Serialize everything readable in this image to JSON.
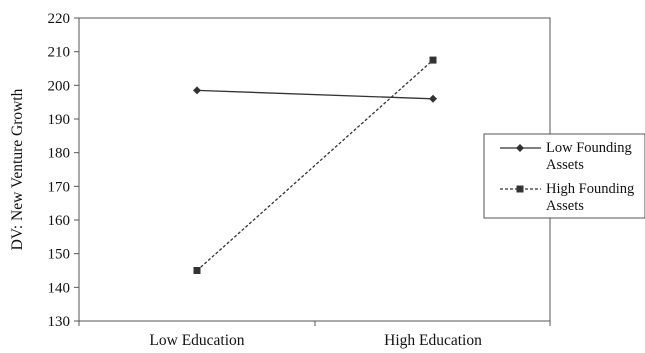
{
  "chart_data": {
    "type": "line",
    "title": "",
    "xlabel": "",
    "ylabel": "DV: New Venture Growth",
    "categories": [
      "Low Education",
      "High Education"
    ],
    "ylim": [
      130,
      220
    ],
    "yticks": [
      130,
      140,
      150,
      160,
      170,
      180,
      190,
      200,
      210,
      220
    ],
    "grid": false,
    "legend_position": "right",
    "series": [
      {
        "name_lines": [
          "Low Founding",
          "Assets"
        ],
        "values": [
          198.5,
          196
        ],
        "marker": "diamond",
        "line_style": "solid",
        "color": "#333333"
      },
      {
        "name_lines": [
          "High Founding",
          "Assets"
        ],
        "values": [
          145,
          207.5
        ],
        "marker": "square",
        "line_style": "dashed",
        "color": "#333333"
      }
    ]
  }
}
